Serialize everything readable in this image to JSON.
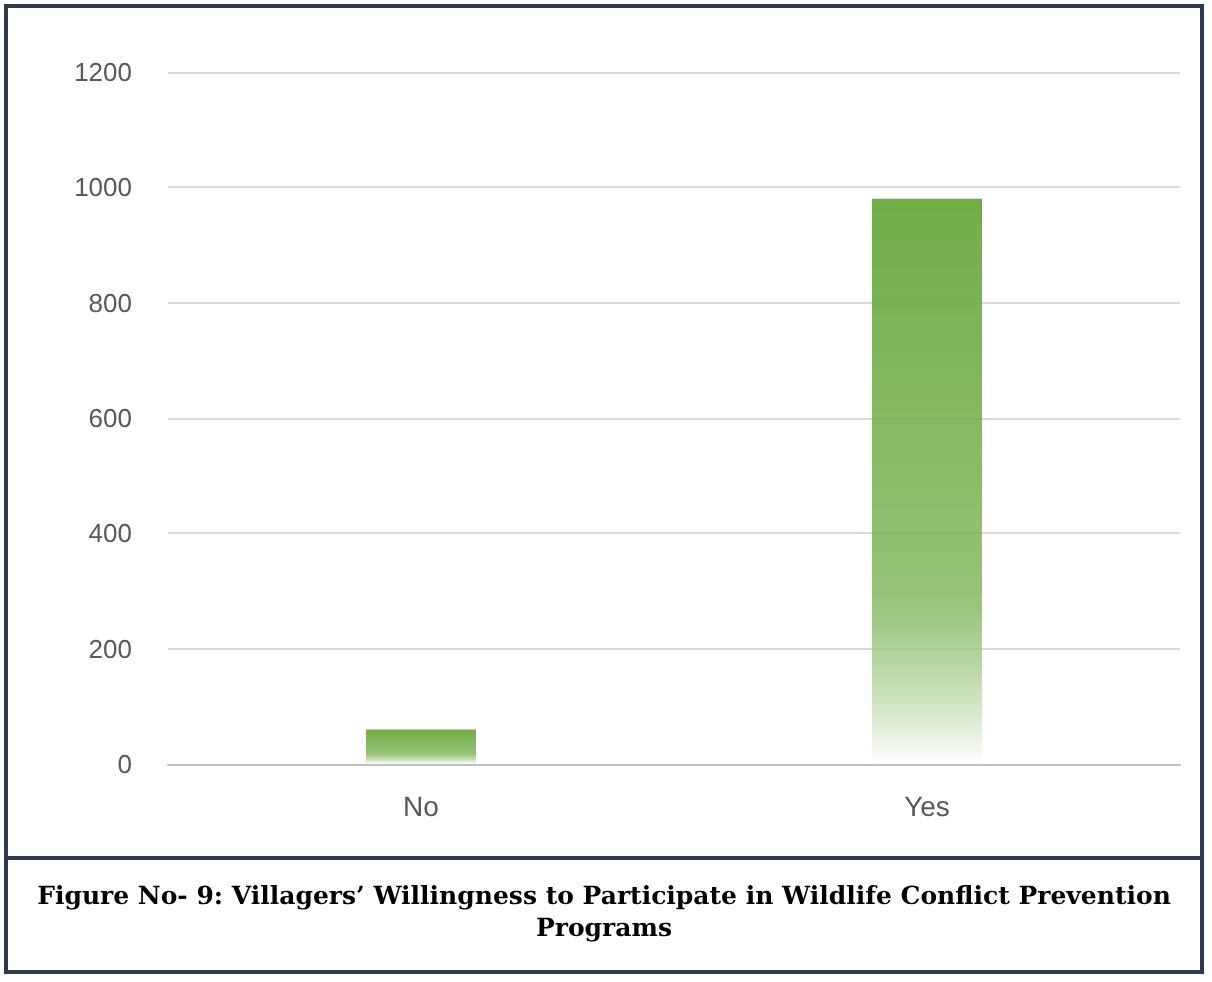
{
  "chart_data": {
    "type": "bar",
    "title": "Figure No- 9: Villagers’ Willingness to Participate in Wildlife Conflict Prevention Programs",
    "categories": [
      "No",
      "Yes"
    ],
    "values": [
      60,
      980
    ],
    "color": "#70ad47",
    "ylim": [
      0,
      1200
    ],
    "yticks": [
      0,
      200,
      400,
      600,
      800,
      1000,
      1200
    ],
    "grid": "y"
  }
}
